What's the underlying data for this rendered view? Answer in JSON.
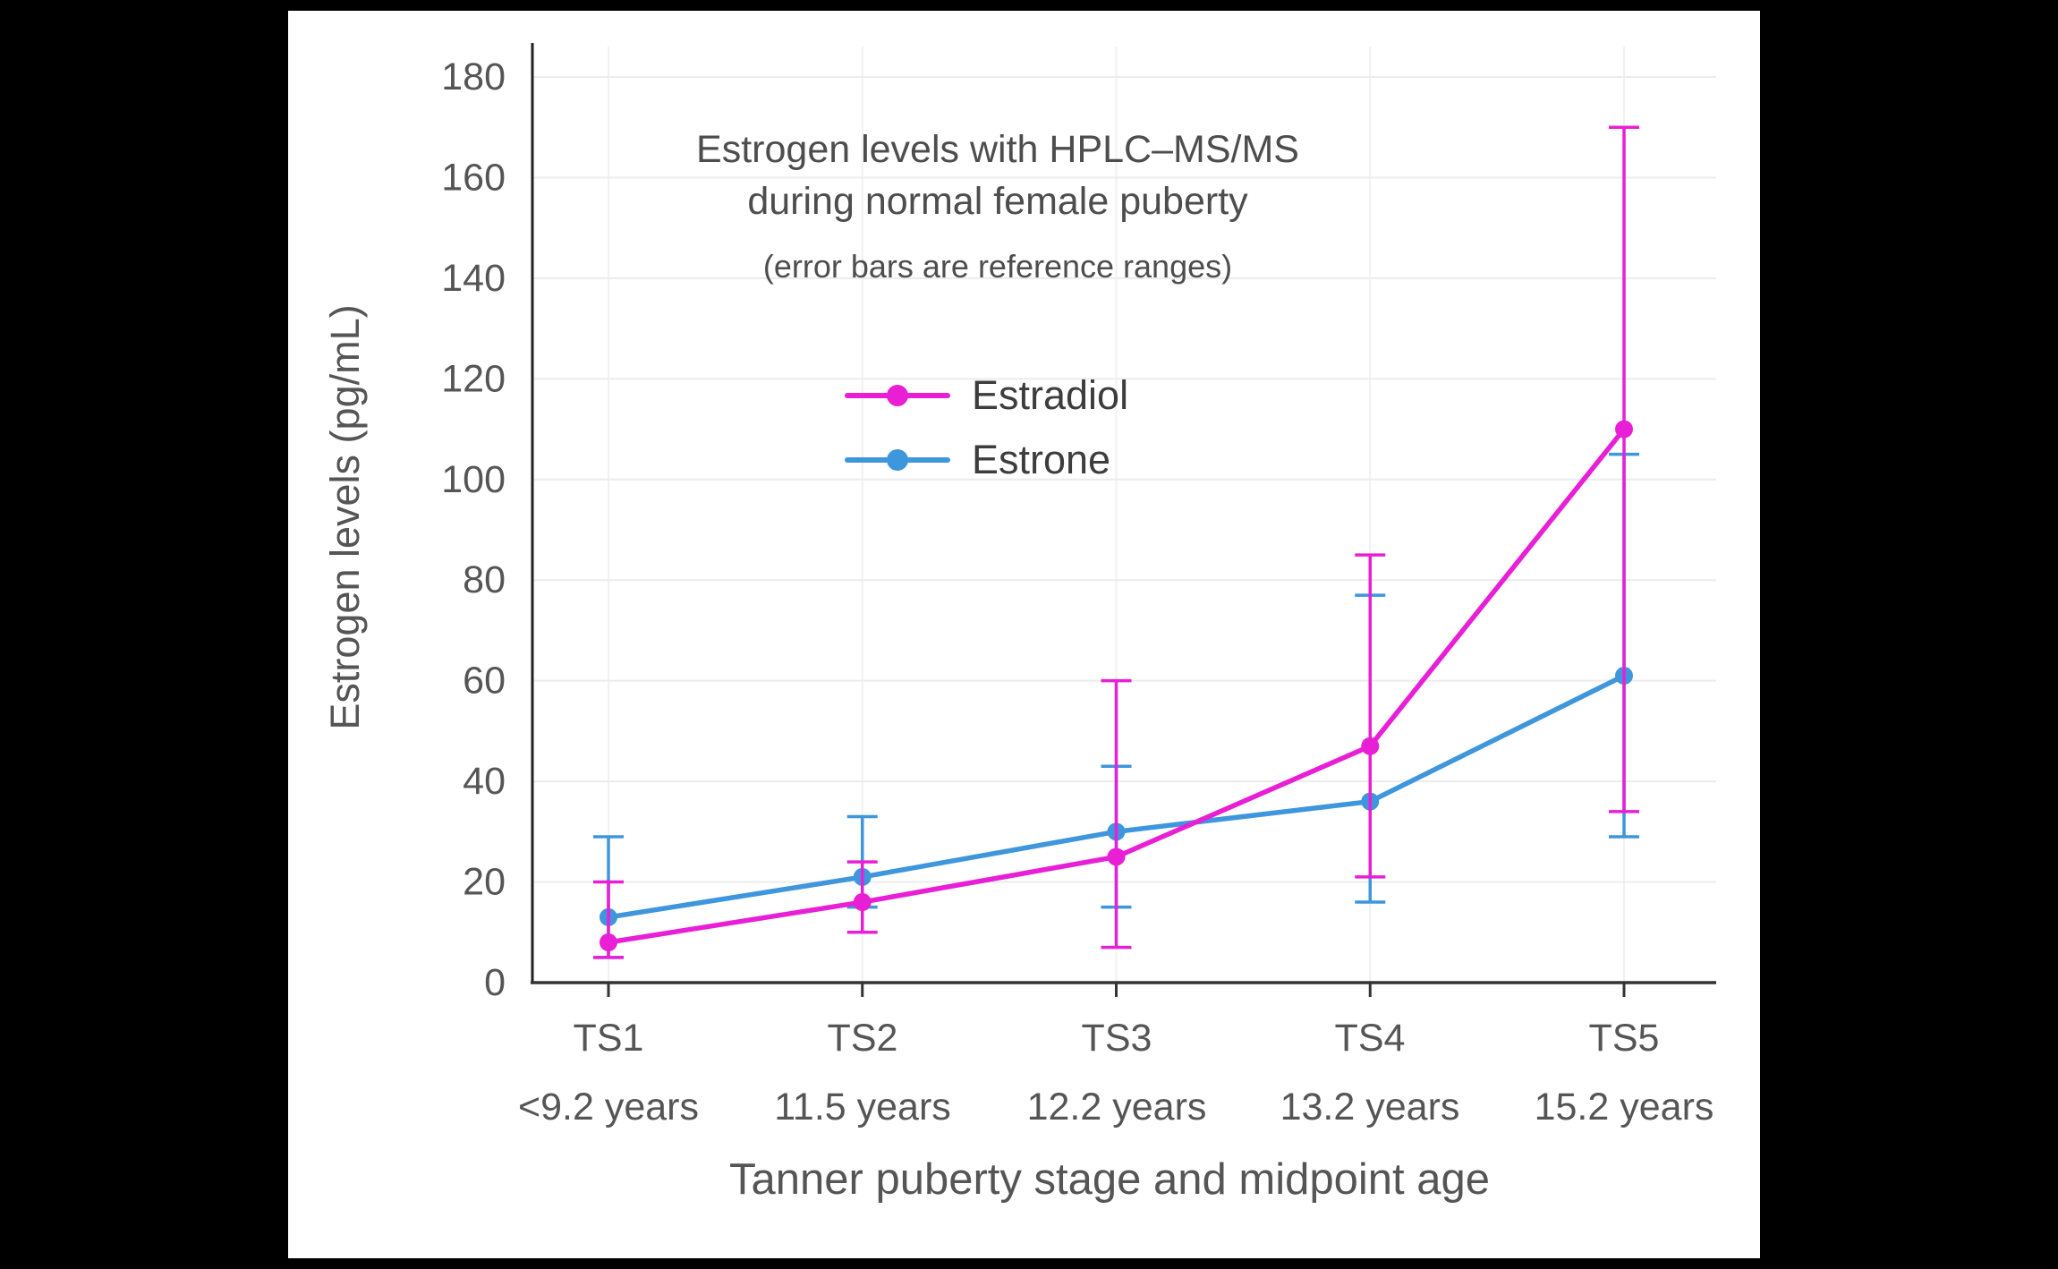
{
  "window": {
    "background": "#000000",
    "panel_background": "#ffffff"
  },
  "chart_data": {
    "type": "line",
    "title_line1": "Estrogen levels with HPLC–MS/MS",
    "title_line2": "during normal female puberty",
    "subtitle": "(error bars are reference ranges)",
    "xlabel": "Tanner puberty stage and midpoint age",
    "ylabel": "Estrogen levels (pg/mL)",
    "ylim": [
      0,
      180
    ],
    "ytick_step": 20,
    "grid": true,
    "legend_position": "upper-left-inside",
    "legend_order": [
      "Estradiol",
      "Estrone"
    ],
    "text_color": "#555555",
    "grid_color": "#ececec",
    "grid_color_vertical": "#f1f1f1",
    "axis_color": "#333333",
    "categories": [
      {
        "stage": "TS1",
        "age": "<9.2 years"
      },
      {
        "stage": "TS2",
        "age": "11.5 years"
      },
      {
        "stage": "TS3",
        "age": "12.2 years"
      },
      {
        "stage": "TS4",
        "age": "13.2 years"
      },
      {
        "stage": "TS5",
        "age": "15.2 years"
      }
    ],
    "series": [
      {
        "name": "Estradiol",
        "color": "#E91FD6",
        "values": [
          8,
          16,
          25,
          47,
          110
        ],
        "error_low": [
          5,
          10,
          7,
          21,
          34
        ],
        "error_high": [
          20,
          24,
          60,
          85,
          170
        ]
      },
      {
        "name": "Estrone",
        "color": "#3E96DC",
        "values": [
          13,
          21,
          30,
          36,
          61
        ],
        "error_low": [
          5,
          15,
          15,
          16,
          29
        ],
        "error_high": [
          29,
          33,
          43,
          77,
          105
        ]
      }
    ]
  }
}
